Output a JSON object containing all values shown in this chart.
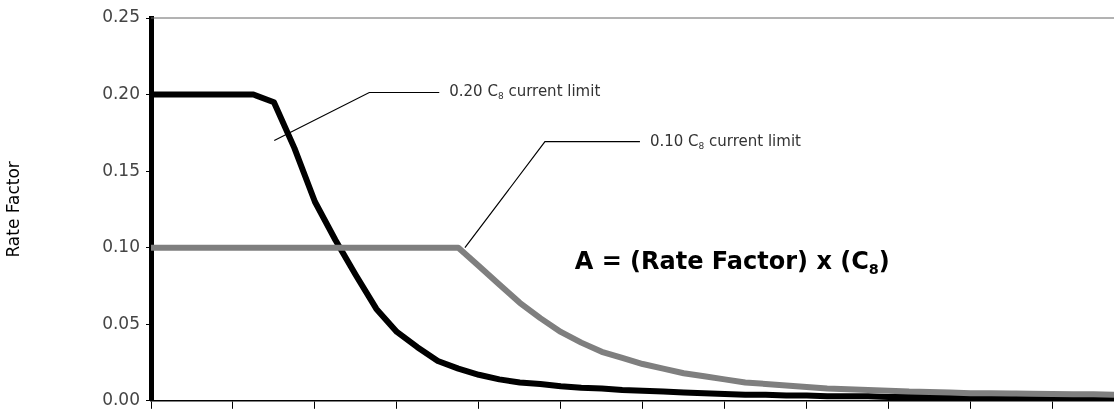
{
  "chart_data": {
    "type": "line",
    "ylabel": "Rate Factor",
    "categories": [
      null,
      null,
      null,
      null,
      null,
      null,
      null,
      null,
      null,
      null,
      null,
      null,
      null,
      null,
      null,
      null,
      null,
      null,
      null,
      null,
      null,
      null,
      null,
      null,
      null,
      null,
      null,
      null,
      null,
      null,
      null,
      null,
      null,
      null,
      null,
      null,
      null,
      null,
      null,
      null,
      null,
      null,
      null,
      null,
      null,
      null,
      null,
      null
    ],
    "ylim": [
      0,
      0.25
    ],
    "yticks": [
      {
        "value": 0,
        "label": "0.00"
      },
      {
        "value": 0.05,
        "label": "0.05"
      },
      {
        "value": 0.1,
        "label": "0.10"
      },
      {
        "value": 0.15,
        "label": "0.15"
      },
      {
        "value": 0.2,
        "label": "0.20"
      },
      {
        "value": 0.25,
        "label": "0.25"
      }
    ],
    "tick_labels": "y",
    "grid": false,
    "legend": false,
    "marker": "none",
    "line_style": "solid",
    "series": [
      {
        "color": "#7f7f7f",
        "values": [
          0.1,
          0.1,
          0.1,
          0.1,
          0.1,
          0.1,
          0.1,
          0.1,
          0.1,
          0.1,
          0.1,
          0.1,
          0.1,
          0.1,
          0.1,
          0.1,
          0.088,
          0.076,
          0.064,
          0.054,
          0.045,
          0.038,
          0.032,
          0.028,
          0.024,
          0.021,
          0.018,
          0.016,
          0.014,
          0.012,
          0.011,
          0.01,
          0.009,
          0.008,
          0.0075,
          0.007,
          0.0065,
          0.006,
          0.0058,
          0.0055,
          0.005,
          0.005,
          0.0048,
          0.0046,
          0.0045,
          0.0043,
          0.0042,
          0.004
        ]
      },
      {
        "color": "#000000",
        "values": [
          0.2,
          0.2,
          0.2,
          0.2,
          0.2,
          0.2,
          0.195,
          0.165,
          0.13,
          0.105,
          0.082,
          0.06,
          0.045,
          0.035,
          0.026,
          0.021,
          0.017,
          0.014,
          0.012,
          0.011,
          0.0095,
          0.0085,
          0.008,
          0.007,
          0.0065,
          0.006,
          0.0055,
          0.005,
          0.0045,
          0.004,
          0.004,
          0.0035,
          0.0035,
          0.003,
          0.003,
          0.003,
          0.0025,
          0.0025,
          0.0025,
          0.002,
          0.002,
          0.002,
          0.002,
          0.0015,
          0.0015,
          0.0015,
          0.001,
          0.001
        ]
      }
    ],
    "annotations": [
      "0.20 C$_{8}$ current limit",
      "0.10 C$_{8}$ current limit",
      "A = (Rate Factor) x (C$_{8}$)"
    ]
  }
}
